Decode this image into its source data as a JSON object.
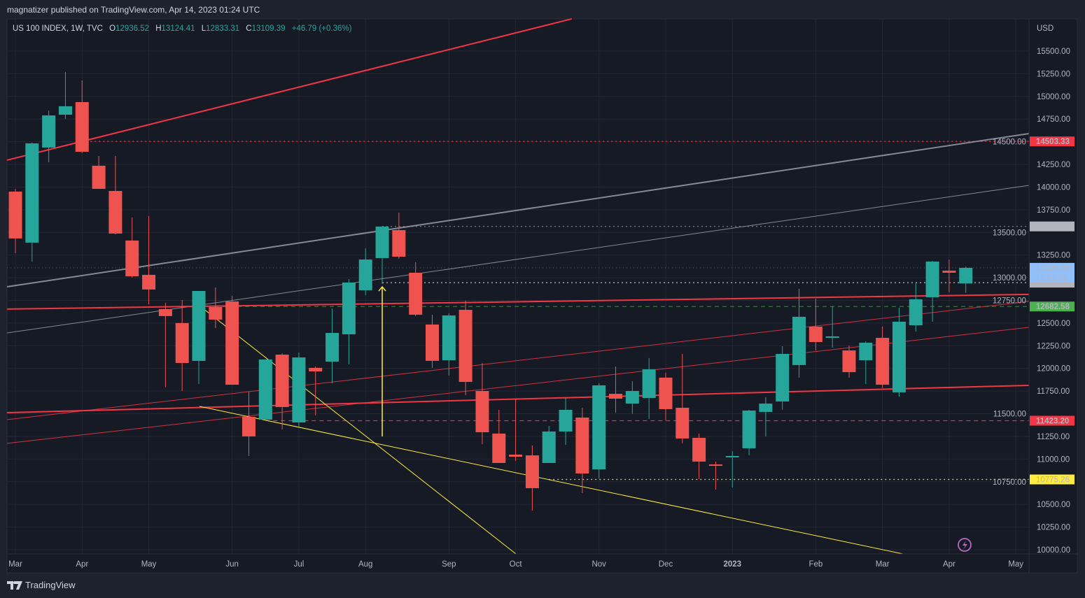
{
  "header": {
    "publisher": "magnatizer published on TradingView.com, Apr 14, 2023 01:24 UTC",
    "symbol": "US 100 INDEX, 1W, TVC",
    "o_label": "O",
    "o": "12936.52",
    "h_label": "H",
    "h": "13124.41",
    "l_label": "L",
    "l": "12833.31",
    "c_label": "C",
    "c": "13109.39",
    "change": "+46.79 (+0.36%)"
  },
  "footer": {
    "brand": "TradingView",
    "logo_icon": "tradingview-logo-icon",
    "bolt_icon": "lightning-icon"
  },
  "colors": {
    "up": "#26a69a",
    "down": "#ef5350",
    "red_line": "#f23645",
    "gray_line": "#868993",
    "yellow": "#ffeb3b",
    "green_label": "#4caf50",
    "blue_label": "#90bff9",
    "gray_label": "#b2b5be"
  },
  "chart_data": {
    "type": "candlestick",
    "title": "US 100 INDEX, 1W, TVC",
    "currency": "USD",
    "ylim": [
      10000,
      15600
    ],
    "y_ticks": [
      "10000.00",
      "10250.00",
      "10500.00",
      "10750.00",
      "11000.00",
      "11250.00",
      "11500.00",
      "11750.00",
      "12000.00",
      "12250.00",
      "12500.00",
      "12750.00",
      "13000.00",
      "13250.00",
      "13500.00",
      "13750.00",
      "14000.00",
      "14250.00",
      "14500.00",
      "14750.00",
      "15000.00",
      "15250.00",
      "15500.00"
    ],
    "x_ticks": [
      {
        "label": "Mar",
        "bar": 0
      },
      {
        "label": "Apr",
        "bar": 4
      },
      {
        "label": "May",
        "bar": 8
      },
      {
        "label": "Jun",
        "bar": 13
      },
      {
        "label": "Jul",
        "bar": 17
      },
      {
        "label": "Aug",
        "bar": 21
      },
      {
        "label": "Sep",
        "bar": 26
      },
      {
        "label": "Oct",
        "bar": 30
      },
      {
        "label": "Nov",
        "bar": 35
      },
      {
        "label": "Dec",
        "bar": 39
      },
      {
        "label": "2023",
        "bar": 43,
        "bold": true
      },
      {
        "label": "Feb",
        "bar": 48
      },
      {
        "label": "Mar",
        "bar": 52
      },
      {
        "label": "Apr",
        "bar": 56
      },
      {
        "label": "May",
        "bar": 60
      }
    ],
    "ohlc": [
      [
        13950,
        13980,
        13271,
        13433
      ],
      [
        13387,
        14490,
        13178,
        14482
      ],
      [
        14436,
        14844,
        14274,
        14790
      ],
      [
        14798,
        15269,
        14752,
        14891
      ],
      [
        14937,
        15176,
        14374,
        14389
      ],
      [
        14235,
        14343,
        13980,
        13980
      ],
      [
        13957,
        14343,
        13479,
        13487
      ],
      [
        13410,
        13664,
        13001,
        13016
      ],
      [
        13032,
        13680,
        12708,
        12870
      ],
      [
        12654,
        12724,
        11791,
        12577
      ],
      [
        12500,
        12754,
        11751,
        12060
      ],
      [
        12083,
        12854,
        11828,
        12854
      ],
      [
        12677,
        12893,
        12445,
        12538
      ],
      [
        12738,
        12800,
        11820,
        11820
      ],
      [
        11466,
        11743,
        11034,
        11250
      ],
      [
        11435,
        12098,
        11420,
        12098
      ],
      [
        12152,
        12167,
        11327,
        11574
      ],
      [
        11404,
        12175,
        11358,
        12121
      ],
      [
        12006,
        12021,
        11481,
        11967
      ],
      [
        12075,
        12661,
        11836,
        12391
      ],
      [
        12376,
        12985,
        12044,
        12947
      ],
      [
        12862,
        13325,
        12808,
        13201
      ],
      [
        13217,
        13564,
        12931,
        13564
      ],
      [
        13525,
        13718,
        13209,
        13232
      ],
      [
        13055,
        13170,
        12577,
        12592
      ],
      [
        12484,
        12592,
        12006,
        12083
      ],
      [
        12090,
        12607,
        11921,
        12584
      ],
      [
        12646,
        12746,
        11705,
        11851
      ],
      [
        11751,
        12060,
        11165,
        11296
      ],
      [
        11281,
        11543,
        10957,
        10957
      ],
      [
        11049,
        11659,
        10980,
        11026
      ],
      [
        11041,
        11149,
        10432,
        10679
      ],
      [
        10957,
        11365,
        10957,
        11304
      ],
      [
        11304,
        11674,
        11157,
        11543
      ],
      [
        11458,
        11566,
        10625,
        10841
      ],
      [
        10887,
        11836,
        10787,
        11813
      ],
      [
        11720,
        12021,
        11512,
        11666
      ],
      [
        11612,
        11859,
        11497,
        11751
      ],
      [
        11674,
        12114,
        11443,
        11990
      ],
      [
        11898,
        11952,
        11427,
        11551
      ],
      [
        11566,
        12160,
        11173,
        11227
      ],
      [
        11234,
        11281,
        10779,
        10972
      ],
      [
        10941,
        10972,
        10663,
        10926
      ],
      [
        11026,
        11088,
        10687,
        11034
      ],
      [
        11119,
        11543,
        11041,
        11535
      ],
      [
        11520,
        11682,
        11250,
        11612
      ],
      [
        11635,
        12245,
        11543,
        12160
      ],
      [
        12037,
        12877,
        11898,
        12569
      ],
      [
        12461,
        12769,
        12198,
        12291
      ],
      [
        12345,
        12685,
        12229,
        12353
      ],
      [
        12198,
        12252,
        11898,
        11959
      ],
      [
        12090,
        12299,
        11828,
        12283
      ],
      [
        12337,
        12461,
        11782,
        11820
      ],
      [
        11736,
        12669,
        11689,
        12515
      ],
      [
        12476,
        12939,
        12407,
        12762
      ],
      [
        12785,
        13186,
        12515,
        13178
      ],
      [
        13078,
        13201,
        12839,
        13055
      ],
      [
        12936.52,
        13124.41,
        12833.31,
        13109.39
      ]
    ],
    "trendlines": [
      {
        "name": "upper-red-channel-line",
        "color": "red",
        "width": 2,
        "p1": [
          -0.5,
          14297
        ],
        "p2": [
          33.37,
          15855
        ]
      },
      {
        "name": "gray-trendline-thick",
        "color": "gray",
        "width": 2,
        "p1": [
          -0.5,
          12900
        ],
        "p2": [
          60.79,
          14590
        ]
      },
      {
        "name": "gray-trendline-thin",
        "color": "gray",
        "width": 1,
        "p1": [
          -0.5,
          12391
        ],
        "p2": [
          60.79,
          14019
        ]
      },
      {
        "name": "red-resistance-line",
        "color": "red",
        "width": 2,
        "p1": [
          -0.5,
          12654
        ],
        "p2": [
          60.79,
          12816
        ]
      },
      {
        "name": "red-channel-line-a",
        "color": "red",
        "width": 1,
        "p1": [
          -0.5,
          11435
        ],
        "p2": [
          60.79,
          12739
        ]
      },
      {
        "name": "red-channel-line-b",
        "color": "red",
        "width": 1,
        "p1": [
          -0.5,
          11173
        ],
        "p2": [
          60.79,
          12453
        ]
      },
      {
        "name": "red-support-line",
        "color": "red",
        "width": 2,
        "p1": [
          -0.5,
          11512
        ],
        "p2": [
          60.79,
          11813
        ]
      },
      {
        "name": "yellow-diagonal-line",
        "color": "yellow",
        "width": 1,
        "p1": [
          11.04,
          12692
        ],
        "p2": [
          30.02,
          9954
        ]
      },
      {
        "name": "yellow-wedge-line",
        "color": "yellow",
        "width": 1,
        "p1": [
          11.04,
          11581
        ],
        "p2": [
          53.23,
          9954
        ]
      }
    ],
    "arrow": {
      "bar": 22,
      "from": 11250,
      "to": 12900
    },
    "levels": [
      {
        "price": 14503.33,
        "label": "14503.33",
        "style": "dotted",
        "color": "red",
        "from_bar": 4,
        "label_bg": "#f23645",
        "label_fg": "#ffffff"
      },
      {
        "price": 13565.87,
        "label": "13565.87",
        "style": "dotted",
        "color": "gray",
        "from_bar": 22,
        "label_bg": "#b2b5be",
        "label_fg": "#131722"
      },
      {
        "price": 12945.6,
        "label": "12945.60",
        "style": "dotted",
        "color": "white",
        "from_bar": 22,
        "label_bg": "#b2b5be",
        "label_fg": "#131722"
      },
      {
        "price": 12682.58,
        "label": "12682.58",
        "style": "dashed",
        "color": "green",
        "from_bar": 11,
        "label_bg": "#4caf50",
        "label_fg": "#ffffff"
      },
      {
        "price": 11423.2,
        "label": "11423.20",
        "style": "dashed",
        "color": "red",
        "from_bar": 15,
        "label_bg": "#f23645",
        "label_fg": "#ffffff"
      },
      {
        "price": 10775.26,
        "label": "10775.26",
        "style": "dotted",
        "color": "yellow",
        "from_bar": 32,
        "label_bg": "#ffeb3b",
        "label_fg": "#131722"
      }
    ],
    "last_price": {
      "price": 13109.39,
      "label": "13109.39",
      "countdown": "19:51:55"
    }
  }
}
